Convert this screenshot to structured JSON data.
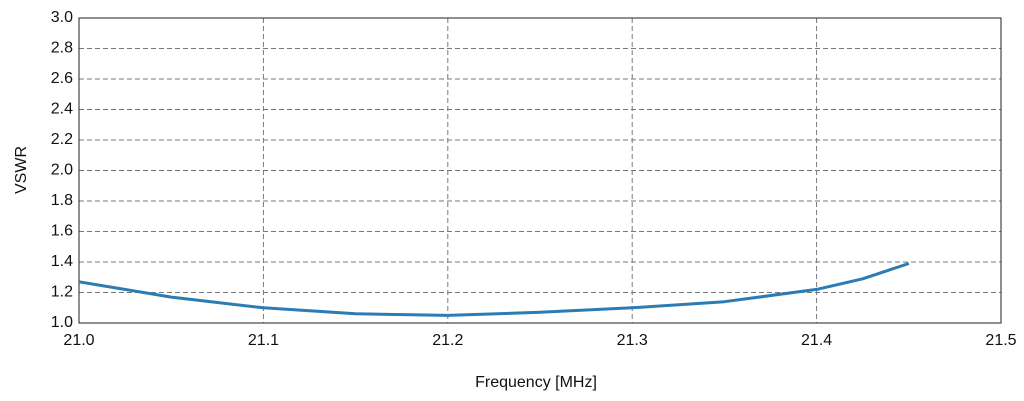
{
  "chart_data": {
    "type": "line",
    "xlabel": "Frequency [MHz]",
    "ylabel": "VSWR",
    "x": [
      21.0,
      21.05,
      21.1,
      21.15,
      21.2,
      21.25,
      21.3,
      21.35,
      21.4,
      21.425,
      21.45
    ],
    "values": [
      1.27,
      1.17,
      1.1,
      1.06,
      1.05,
      1.07,
      1.1,
      1.14,
      1.22,
      1.29,
      1.39
    ],
    "color": "#2b7bb5",
    "xlim": [
      21.0,
      21.5
    ],
    "xticks": [
      {
        "value": 21.0,
        "label": "21.0"
      },
      21.1,
      21.2,
      21.3,
      21.4,
      21.5
    ],
    "ylim": [
      1.0,
      3.0
    ],
    "yticks": [
      {
        "value": 1.0,
        "label": "1.0"
      },
      1.2,
      1.4,
      1.6,
      1.8,
      {
        "value": 2.0,
        "label": "2.0"
      },
      2.2,
      2.4,
      2.6,
      2.8,
      {
        "value": 3.0,
        "label": "3.0"
      }
    ],
    "grid": true
  }
}
